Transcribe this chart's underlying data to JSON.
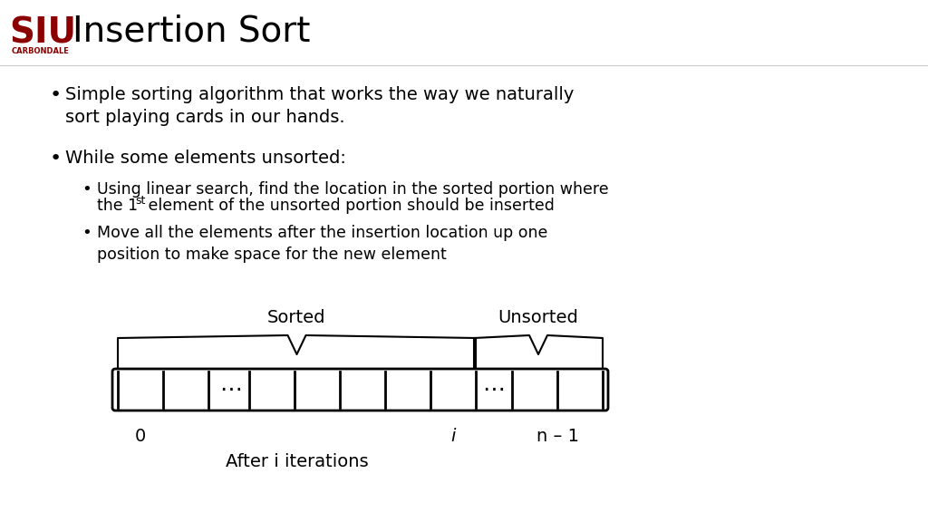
{
  "title": "Insertion Sort",
  "bg_color": "#ffffff",
  "title_color": "#000000",
  "siu_color": "#8b0000",
  "bullet1": "Simple sorting algorithm that works the way we naturally\nsort playing cards in our hands.",
  "bullet2": "While some elements unsorted:",
  "sub_bullet1": "Using linear search, find the location in the sorted portion where\nthe 1",
  "sub_bullet1_sup": "st",
  "sub_bullet1_end": " element of the unsorted portion should be inserted",
  "sub_bullet2": "Move all the elements after the insertion location up one\nposition to make space for the new element",
  "sorted_label": "Sorted",
  "unsorted_label": "Unsorted",
  "index_0": "0",
  "index_i": "i",
  "index_n": "n – 1",
  "after_label": "After i iterations"
}
